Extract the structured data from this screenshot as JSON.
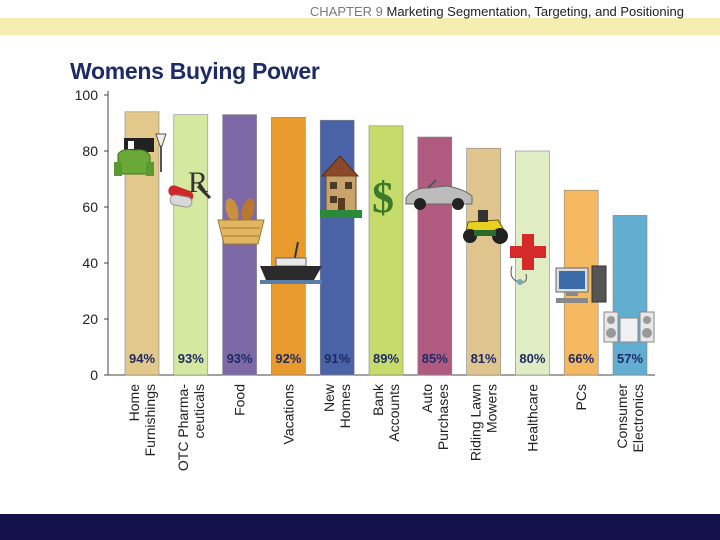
{
  "header": {
    "chapter_label": "CHAPTER 9",
    "chapter_title": "Marketing Segmentation, Targeting, and Positioning"
  },
  "slide_title": "Womens Buying Power",
  "chart_data": {
    "type": "bar",
    "categories": [
      [
        "Home",
        "Furnishings"
      ],
      [
        "OTC Pharma-",
        "ceuticals"
      ],
      [
        "Food"
      ],
      [
        "Vacations"
      ],
      [
        "New",
        "Homes"
      ],
      [
        "Bank",
        "Accounts"
      ],
      [
        "Auto",
        "Purchases"
      ],
      [
        "Riding Lawn",
        "Mowers"
      ],
      [
        "Healthcare"
      ],
      [
        "PCs"
      ],
      [
        "Consumer",
        "Electronics"
      ]
    ],
    "values": [
      94,
      93,
      93,
      92,
      91,
      89,
      85,
      81,
      80,
      66,
      57
    ],
    "labels": [
      "94%",
      "93%",
      "93%",
      "92%",
      "91%",
      "89%",
      "85%",
      "81%",
      "80%",
      "66%",
      "57%"
    ],
    "colors": [
      "#e2c88a",
      "#d4e8a0",
      "#7d68a8",
      "#e89a2c",
      "#4a62a6",
      "#c6dc6a",
      "#b05a80",
      "#e0c48e",
      "#e0ecc4",
      "#f4b860",
      "#62aed0"
    ],
    "ylim": [
      0,
      100
    ],
    "yticks": [
      "0",
      "20",
      "40",
      "60",
      "80",
      "100"
    ],
    "grid": false
  },
  "icons": {
    "furniture": "armchair-lamp-icon",
    "pharma": "rx-pills-icon",
    "food": "bread-basket-icon",
    "vacation": "cruise-ship-icon",
    "home": "house-icon",
    "bank": "dollar-sign-icon",
    "auto": "convertible-car-icon",
    "mower": "riding-mower-icon",
    "health": "red-cross-icon",
    "pc": "desktop-computer-icon",
    "electronics": "stereo-icon"
  },
  "colors": {
    "title": "#1d2b66",
    "header_stripe": "#f6eeb0",
    "footer_bar": "#13104a"
  }
}
